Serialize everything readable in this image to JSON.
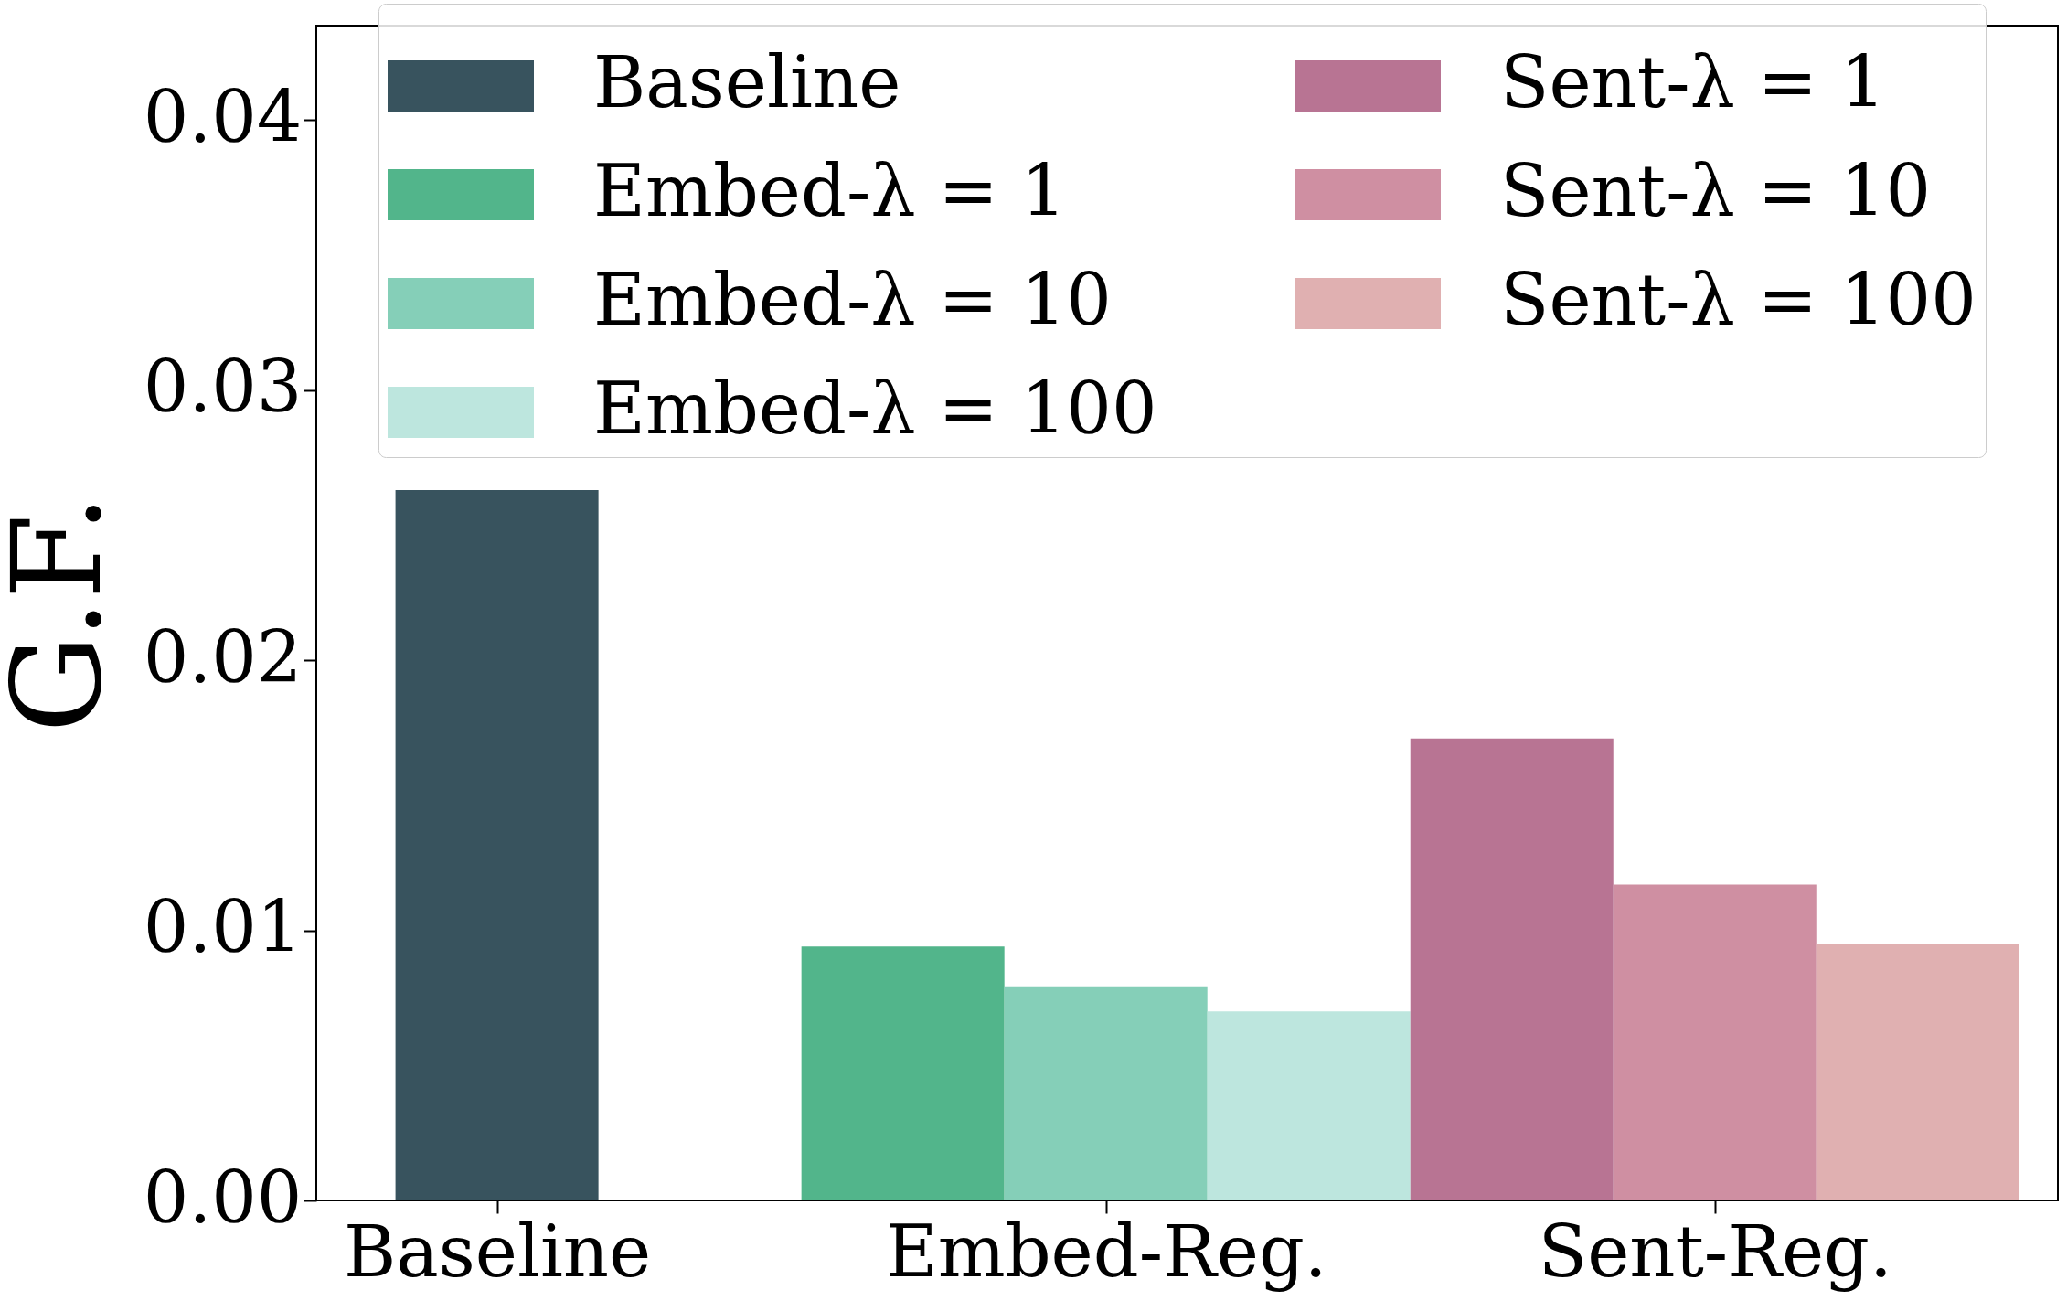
{
  "chart_data": {
    "type": "bar",
    "ylabel": "G.F.",
    "categories": [
      "Baseline",
      "Embed-Reg.",
      "Sent-Reg."
    ],
    "series": [
      {
        "name": "Baseline",
        "color": "#38535e",
        "values": [
          0.0263,
          null,
          null
        ]
      },
      {
        "name": "Embed-λ = 1",
        "color": "#52b58b",
        "values": [
          null,
          0.0094,
          null
        ]
      },
      {
        "name": "Embed-λ = 10",
        "color": "#85cfb8",
        "values": [
          null,
          0.0079,
          null
        ]
      },
      {
        "name": "Embed-λ = 100",
        "color": "#bde6de",
        "values": [
          null,
          0.007,
          null
        ]
      },
      {
        "name": "Sent-λ = 1",
        "color": "#b87493",
        "values": [
          null,
          null,
          0.0171
        ]
      },
      {
        "name": "Sent-λ = 10",
        "color": "#cf8fa2",
        "values": [
          null,
          null,
          0.0117
        ]
      },
      {
        "name": "Sent-λ = 100",
        "color": "#e0b0b1",
        "values": [
          null,
          null,
          0.0095
        ]
      }
    ],
    "ylim": [
      0,
      0.0435
    ],
    "yticks": [
      {
        "value": 0,
        "label": "0.00"
      },
      {
        "value": 0.01,
        "label": "0.01"
      },
      {
        "value": 0.02,
        "label": "0.02"
      },
      {
        "value": 0.03,
        "label": "0.03"
      },
      {
        "value": 0.04,
        "label": "0.04"
      }
    ],
    "grid": false,
    "legend": "top"
  }
}
